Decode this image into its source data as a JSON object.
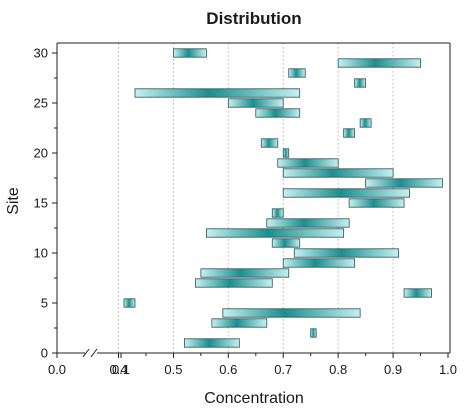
{
  "chart_data": {
    "type": "floating-bar",
    "title": "Distribution",
    "xlabel": "Concentration",
    "ylabel": "Site",
    "xlim": [
      0.0,
      1.0
    ],
    "ylim": [
      0,
      31
    ],
    "axis_break": {
      "from": 0.0,
      "to": 0.4
    },
    "x_tick_values": [
      0.0,
      0.1,
      0.4,
      0.5,
      0.6,
      0.7,
      0.8,
      0.9,
      1.0
    ],
    "x_tick_labels": [
      "0.0",
      "0.1",
      "0.4",
      "0.5",
      "0.6",
      "0.7",
      "0.8",
      "0.9",
      "1.0"
    ],
    "y_tick_values": [
      0,
      5,
      10,
      15,
      20,
      25,
      30
    ],
    "y_tick_labels": [
      "0",
      "5",
      "10",
      "15",
      "20",
      "25",
      "30"
    ],
    "grid": {
      "x": "dotted-vertical",
      "y": false
    },
    "colors": {
      "bar_light": "#c6f1f1",
      "bar_dark": "#1c8e8e",
      "bar_edge": "#2b4f55",
      "grid": "#b8b8b8"
    },
    "series": [
      {
        "bars": [
          {
            "site": 1,
            "start": 0.52,
            "end": 0.62
          },
          {
            "site": 2,
            "start": 0.75,
            "end": 0.76
          },
          {
            "site": 3,
            "start": 0.57,
            "end": 0.67
          },
          {
            "site": 4,
            "start": 0.59,
            "end": 0.84
          },
          {
            "site": 5,
            "start": 0.41,
            "end": 0.43
          },
          {
            "site": 6,
            "start": 0.92,
            "end": 0.97
          },
          {
            "site": 7,
            "start": 0.54,
            "end": 0.68
          },
          {
            "site": 8,
            "start": 0.55,
            "end": 0.71
          },
          {
            "site": 9,
            "start": 0.7,
            "end": 0.83
          },
          {
            "site": 10,
            "start": 0.72,
            "end": 0.91
          },
          {
            "site": 11,
            "start": 0.68,
            "end": 0.73
          },
          {
            "site": 12,
            "start": 0.56,
            "end": 0.81
          },
          {
            "site": 13,
            "start": 0.67,
            "end": 0.82
          },
          {
            "site": 14,
            "start": 0.68,
            "end": 0.7
          },
          {
            "site": 15,
            "start": 0.82,
            "end": 0.92
          },
          {
            "site": 16,
            "start": 0.7,
            "end": 0.93
          },
          {
            "site": 17,
            "start": 0.85,
            "end": 0.99
          },
          {
            "site": 18,
            "start": 0.7,
            "end": 0.9
          },
          {
            "site": 19,
            "start": 0.69,
            "end": 0.8
          },
          {
            "site": 20,
            "start": 0.7,
            "end": 0.71
          },
          {
            "site": 21,
            "start": 0.66,
            "end": 0.69
          },
          {
            "site": 22,
            "start": 0.81,
            "end": 0.83
          },
          {
            "site": 23,
            "start": 0.84,
            "end": 0.86
          },
          {
            "site": 24,
            "start": 0.65,
            "end": 0.73
          },
          {
            "site": 25,
            "start": 0.6,
            "end": 0.7
          },
          {
            "site": 26,
            "start": 0.43,
            "end": 0.73
          },
          {
            "site": 27,
            "start": 0.83,
            "end": 0.85
          },
          {
            "site": 28,
            "start": 0.71,
            "end": 0.74
          },
          {
            "site": 29,
            "start": 0.8,
            "end": 0.95
          },
          {
            "site": 30,
            "start": 0.5,
            "end": 0.56
          }
        ]
      }
    ]
  }
}
